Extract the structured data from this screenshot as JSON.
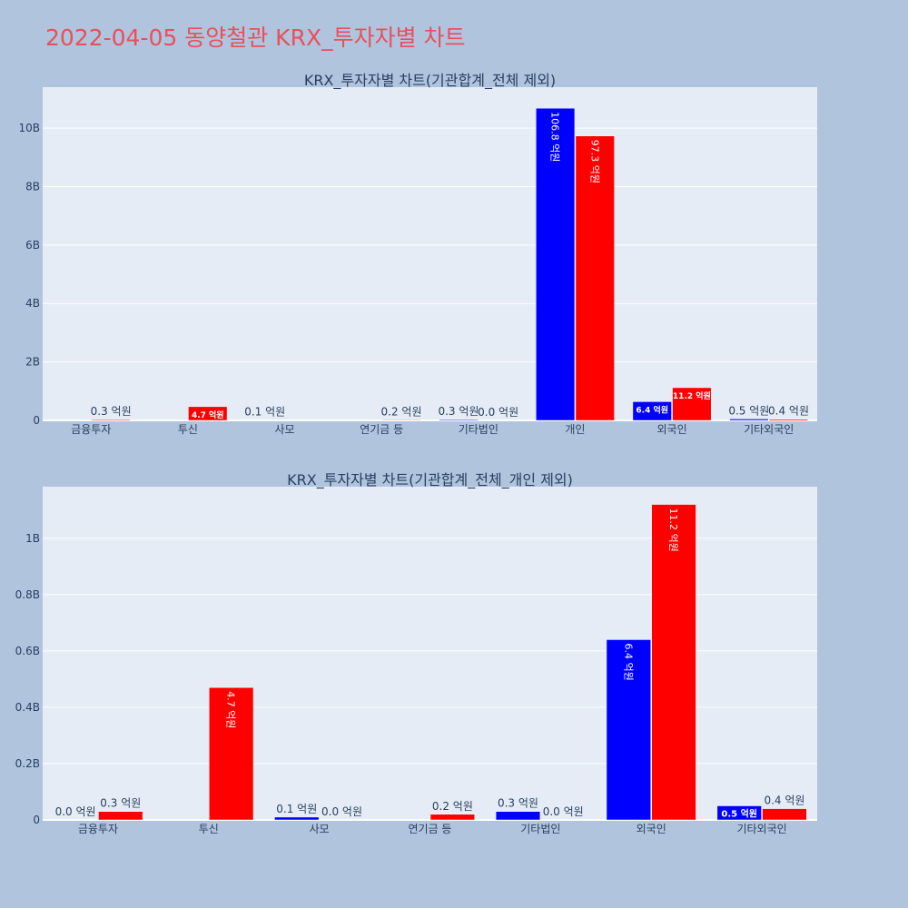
{
  "page": {
    "title": "2022-04-05 동양철관 KRX_투자자별 차트"
  },
  "colors": {
    "buy": "#0000ff",
    "sell": "#ff0000",
    "plot_bg": "#e5ecf6",
    "page_bg": "#b0c4de",
    "title": "#e8505b"
  },
  "chart_data": [
    {
      "type": "bar",
      "title": "KRX_투자자별 차트(기관합계_전체 제외)",
      "categories": [
        "금융투자",
        "투신",
        "사모",
        "연기금 등",
        "기타법인",
        "개인",
        "외국인",
        "기타외국인"
      ],
      "yticks": [
        "0",
        "2B",
        "4B",
        "6B",
        "8B",
        "10B"
      ],
      "ylim": [
        0,
        11400000000
      ],
      "grid": true,
      "series": [
        {
          "color": "#0000ff",
          "values": [
            0,
            0,
            10000000,
            0,
            30000000,
            10680000000,
            640000000,
            50000000
          ],
          "labels": [
            "",
            "",
            "0.1 억원",
            "",
            "0.3 억원",
            "106.8 억원",
            "6.4 억원",
            "0.5 억원"
          ]
        },
        {
          "color": "#ff0000",
          "values": [
            30000000,
            470000000,
            0,
            20000000,
            0,
            9730000000,
            1120000000,
            40000000
          ],
          "labels": [
            "0.3 억원",
            "4.7 억원",
            "",
            "0.2 억원",
            "0.0 억원",
            "97.3 억원",
            "11.2 억원",
            "0.4 억원"
          ]
        }
      ]
    },
    {
      "type": "bar",
      "title": "KRX_투자자별 차트(기관합계_전체_개인 제외)",
      "categories": [
        "금융투자",
        "투신",
        "사모",
        "연기금 등",
        "기타법인",
        "외국인",
        "기타외국인"
      ],
      "yticks": [
        "0",
        "0.2B",
        "0.4B",
        "0.6B",
        "0.8B",
        "1B"
      ],
      "ylim": [
        0,
        1183000000
      ],
      "grid": true,
      "series": [
        {
          "color": "#0000ff",
          "values": [
            0,
            0,
            10000000,
            0,
            30000000,
            640000000,
            50000000
          ],
          "labels": [
            "0.0 억원",
            "",
            "0.1 억원",
            "",
            "0.3 억원",
            "6.4 억원",
            "0.5 억원"
          ]
        },
        {
          "color": "#ff0000",
          "values": [
            30000000,
            470000000,
            0,
            20000000,
            0,
            1120000000,
            40000000
          ],
          "labels": [
            "0.3 억원",
            "4.7 억원",
            "0.0 억원",
            "0.2 억원",
            "0.0 억원",
            "11.2 억원",
            "0.4 억원"
          ]
        }
      ]
    }
  ]
}
